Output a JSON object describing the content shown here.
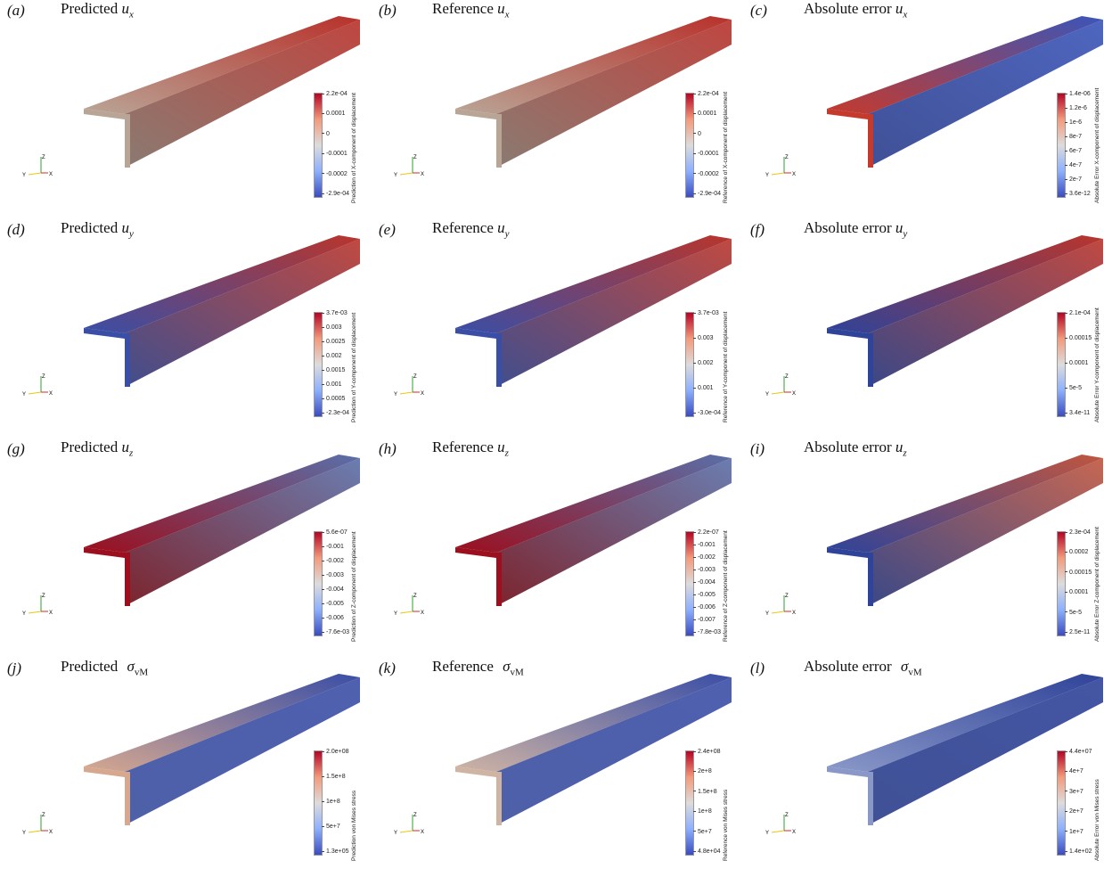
{
  "colorbar_gradient": [
    "#3a4cc0",
    "#8db0fe",
    "#dddcdc",
    "#f49a7b",
    "#b40426"
  ],
  "axis_labels": {
    "z": "Z",
    "y": "Y",
    "x": "X"
  },
  "axis_colors": {
    "z": "#2ca02c",
    "y": "#e6c619",
    "x": "#d62728"
  },
  "panels": [
    {
      "label": "(a)",
      "title": {
        "text": "Predicted ",
        "qty": "u",
        "sub": "x",
        "sig": false
      },
      "colorbar_title": "Prediction of X-component of displacement",
      "ticks": [
        "2.2e-04",
        "0.0001",
        "0",
        "-0.0001",
        "-0.0002",
        "-2.9e-04"
      ],
      "colors": {
        "left": "#b9a596",
        "right": "#b8312b",
        "dark": "#7d6c62"
      }
    },
    {
      "label": "(b)",
      "title": {
        "text": "Reference ",
        "qty": "u",
        "sub": "x",
        "sig": false
      },
      "colorbar_title": "Reference of X-component of displacement",
      "ticks": [
        "2.2e-04",
        "0.0001",
        "0",
        "-0.0001",
        "-0.0002",
        "-2.9e-04"
      ],
      "colors": {
        "left": "#b9a596",
        "right": "#b8312b",
        "dark": "#7d6c62"
      }
    },
    {
      "label": "(c)",
      "title": {
        "text": "Absolute error ",
        "qty": "u",
        "sub": "x",
        "sig": false
      },
      "colorbar_title": "Absolute Error X-component of displacement",
      "ticks": [
        "1.4e-06",
        "1.2e-6",
        "1e-6",
        "8e-7",
        "6e-7",
        "4e-7",
        "2e-7",
        "3.6e-12"
      ],
      "colors": {
        "left": "#c43a2d",
        "right": "#3b55b8",
        "dark": "#2a3d8a"
      }
    },
    {
      "label": "(d)",
      "title": {
        "text": "Predicted ",
        "qty": "u",
        "sub": "y",
        "sig": false
      },
      "colorbar_title": "Prediction of Y-component of displacement",
      "ticks": [
        "3.7e-03",
        "0.003",
        "0.0025",
        "0.002",
        "0.0015",
        "0.001",
        "0.0005",
        "-2.3e-04"
      ],
      "colors": {
        "left": "#3a4ea6",
        "right": "#b9352c",
        "dark": "#2b3a80"
      }
    },
    {
      "label": "(e)",
      "title": {
        "text": "Reference ",
        "qty": "u",
        "sub": "y",
        "sig": false
      },
      "colorbar_title": "Reference of Y-component of displacement",
      "ticks": [
        "3.7e-03",
        "0.003",
        "0.002",
        "0.001",
        "-3.0e-04"
      ],
      "colors": {
        "left": "#3a4ea6",
        "right": "#b9352c",
        "dark": "#2b3a80"
      }
    },
    {
      "label": "(f)",
      "title": {
        "text": "Absolute error ",
        "qty": "u",
        "sub": "y",
        "sig": false
      },
      "colorbar_title": "Absolute Error Y-component of displacement",
      "ticks": [
        "2.1e-04",
        "0.00015",
        "0.0001",
        "5e-5",
        "3.4e-11"
      ],
      "colors": {
        "left": "#2f4399",
        "right": "#b9352c",
        "dark": "#24347a"
      }
    },
    {
      "label": "(g)",
      "title": {
        "text": "Predicted ",
        "qty": "u",
        "sub": "z",
        "sig": false
      },
      "colorbar_title": "Prediction of Z-component of displacement",
      "ticks": [
        "5.6e-07",
        "-0.001",
        "-0.002",
        "-0.003",
        "-0.004",
        "-0.005",
        "-0.006",
        "-7.6e-03"
      ],
      "colors": {
        "left": "#9b0f1e",
        "right": "#5a6fa8",
        "dark": "#6e0c16"
      }
    },
    {
      "label": "(h)",
      "title": {
        "text": "Reference ",
        "qty": "u",
        "sub": "z",
        "sig": false
      },
      "colorbar_title": "Reference of Z-component of displacement",
      "ticks": [
        "2.2e-07",
        "-0.001",
        "-0.002",
        "-0.003",
        "-0.004",
        "-0.005",
        "-0.006",
        "-0.007",
        "-7.8e-03"
      ],
      "colors": {
        "left": "#9b0f1e",
        "right": "#5a6fa8",
        "dark": "#6e0c16"
      }
    },
    {
      "label": "(i)",
      "title": {
        "text": "Absolute error ",
        "qty": "u",
        "sub": "z",
        "sig": false
      },
      "colorbar_title": "Absolute Error Z-component of displacement",
      "ticks": [
        "2.3e-04",
        "0.0002",
        "0.00015",
        "0.0001",
        "5e-5",
        "2.5e-11"
      ],
      "colors": {
        "left": "#2f4399",
        "right": "#c0563f",
        "dark": "#24347a"
      }
    },
    {
      "label": "(j)",
      "title": {
        "text": "Predicted ",
        "qty": "σ",
        "sub": "vM",
        "sig": true
      },
      "colorbar_title": "Prediction von Mises stress",
      "ticks": [
        "2.0e+08",
        "1.5e+8",
        "1e+8",
        "5e+7",
        "1.3e+05"
      ],
      "colors": {
        "left": "#d6a890",
        "right": "#3a4ea6",
        "dark": "#3b4f9e"
      }
    },
    {
      "label": "(k)",
      "title": {
        "text": "Reference ",
        "qty": "σ",
        "sub": "vM",
        "sig": true
      },
      "colorbar_title": "Reference von Mises stress",
      "ticks": [
        "2.4e+08",
        "2e+8",
        "1.5e+8",
        "1e+8",
        "5e+7",
        "4.8e+04"
      ],
      "colors": {
        "left": "#cfb4a4",
        "right": "#3a4ea6",
        "dark": "#3b4f9e"
      }
    },
    {
      "label": "(l)",
      "title": {
        "text": "Absolute error ",
        "qty": "σ",
        "sub": "vM",
        "sig": true
      },
      "colorbar_title": "Absolute Error von Mises stress",
      "ticks": [
        "4.4e+07",
        "4e+7",
        "3e+7",
        "2e+7",
        "1e+7",
        "1.4e+02"
      ],
      "colors": {
        "left": "#8a98c8",
        "right": "#2f4399",
        "dark": "#2a3d8a"
      }
    }
  ]
}
